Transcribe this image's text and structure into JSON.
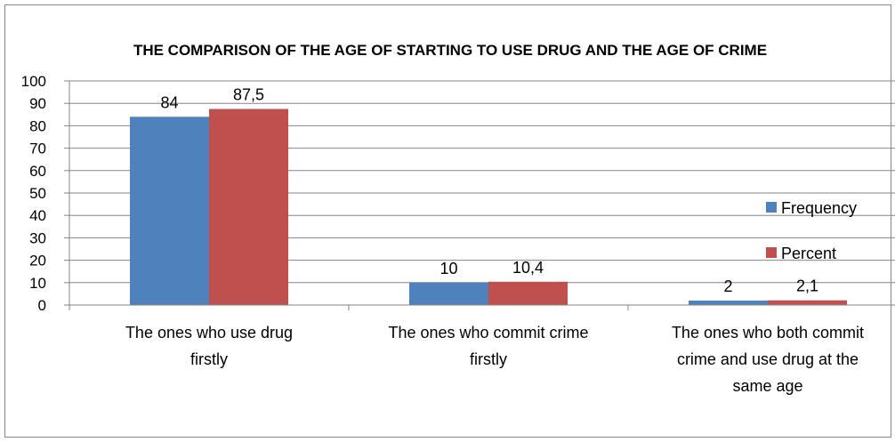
{
  "chart_data": {
    "type": "bar",
    "title": "THE COMPARISON OF THE AGE OF STARTING TO USE DRUG AND THE AGE OF CRIME",
    "xlabel": "",
    "ylabel": "",
    "ylim": [
      0,
      100
    ],
    "yticks": [
      "0",
      "10",
      "20",
      "30",
      "40",
      "50",
      "60",
      "70",
      "80",
      "90",
      "100"
    ],
    "grid": true,
    "legend_position": "right",
    "categories": [
      [
        "The ones who use drug",
        "firstly"
      ],
      [
        "The ones who commit crime",
        "firstly"
      ],
      [
        "The ones who both commit",
        "crime and use drug at the",
        "same age"
      ]
    ],
    "series": [
      {
        "name": "Frequency",
        "color": "#4f81bd",
        "values": [
          84,
          10,
          2
        ],
        "labels": [
          "84",
          "10",
          "2"
        ]
      },
      {
        "name": "Percent",
        "color": "#c0504d",
        "values": [
          87.5,
          10.4,
          2.1
        ],
        "labels": [
          "87,5",
          "10,4",
          "2,1"
        ]
      }
    ]
  }
}
